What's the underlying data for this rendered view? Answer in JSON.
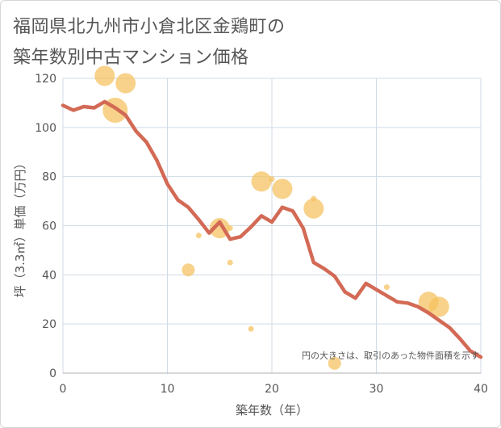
{
  "title_line1": "福岡県北九州市小倉北区金鶏町の",
  "title_line2": "築年数別中古マンション価格",
  "chart_data": {
    "type": "scatter",
    "xlabel": "築年数（年）",
    "ylabel": "坪（3.3㎡）単価（万円）",
    "xlim": [
      0,
      40
    ],
    "ylim": [
      0,
      120
    ],
    "xticks": [
      0,
      10,
      20,
      30,
      40
    ],
    "yticks": [
      0,
      20,
      40,
      60,
      80,
      100,
      120
    ],
    "grid": true,
    "annotation": "円の大きさは、取引のあった物件面積を示す",
    "colors": {
      "bubble": "#f5c15d",
      "line": "#d36a55",
      "grid": "#d0dbe6",
      "text": "#555555"
    },
    "bubbles": [
      {
        "x": 4,
        "y": 121,
        "size": 3
      },
      {
        "x": 6,
        "y": 118,
        "size": 3
      },
      {
        "x": 5,
        "y": 107,
        "size": 4
      },
      {
        "x": 12,
        "y": 42,
        "size": 2
      },
      {
        "x": 13,
        "y": 56,
        "size": 1
      },
      {
        "x": 15,
        "y": 59,
        "size": 3
      },
      {
        "x": 16,
        "y": 59,
        "size": 1
      },
      {
        "x": 16,
        "y": 45,
        "size": 1
      },
      {
        "x": 18,
        "y": 18,
        "size": 1
      },
      {
        "x": 19,
        "y": 78,
        "size": 3
      },
      {
        "x": 20,
        "y": 79,
        "size": 1
      },
      {
        "x": 21,
        "y": 75,
        "size": 3
      },
      {
        "x": 24,
        "y": 71,
        "size": 1
      },
      {
        "x": 24,
        "y": 67,
        "size": 3
      },
      {
        "x": 26,
        "y": 4,
        "size": 2
      },
      {
        "x": 31,
        "y": 35,
        "size": 1
      },
      {
        "x": 35,
        "y": 29,
        "size": 3
      },
      {
        "x": 36,
        "y": 27,
        "size": 3
      }
    ],
    "line": [
      {
        "x": 0,
        "y": 109
      },
      {
        "x": 1,
        "y": 107
      },
      {
        "x": 2,
        "y": 108.5
      },
      {
        "x": 3,
        "y": 108
      },
      {
        "x": 4,
        "y": 110.5
      },
      {
        "x": 5,
        "y": 108
      },
      {
        "x": 6,
        "y": 105
      },
      {
        "x": 7,
        "y": 98.5
      },
      {
        "x": 8,
        "y": 94
      },
      {
        "x": 9,
        "y": 86.5
      },
      {
        "x": 10,
        "y": 77
      },
      {
        "x": 11,
        "y": 70.5
      },
      {
        "x": 12,
        "y": 67.5
      },
      {
        "x": 13,
        "y": 62.5
      },
      {
        "x": 14,
        "y": 57
      },
      {
        "x": 15,
        "y": 61.5
      },
      {
        "x": 16,
        "y": 54.5
      },
      {
        "x": 17,
        "y": 55.5
      },
      {
        "x": 18,
        "y": 59.5
      },
      {
        "x": 19,
        "y": 64
      },
      {
        "x": 20,
        "y": 61.5
      },
      {
        "x": 21,
        "y": 67.5
      },
      {
        "x": 22,
        "y": 66
      },
      {
        "x": 23,
        "y": 59
      },
      {
        "x": 24,
        "y": 45
      },
      {
        "x": 25,
        "y": 42.5
      },
      {
        "x": 26,
        "y": 39.5
      },
      {
        "x": 27,
        "y": 33
      },
      {
        "x": 28,
        "y": 30.5
      },
      {
        "x": 29,
        "y": 36.5
      },
      {
        "x": 30,
        "y": 34
      },
      {
        "x": 31,
        "y": 31.5
      },
      {
        "x": 32,
        "y": 29
      },
      {
        "x": 33,
        "y": 28.5
      },
      {
        "x": 34,
        "y": 27
      },
      {
        "x": 35,
        "y": 24.5
      },
      {
        "x": 36,
        "y": 21.5
      },
      {
        "x": 37,
        "y": 18.5
      },
      {
        "x": 38,
        "y": 14
      },
      {
        "x": 39,
        "y": 9
      },
      {
        "x": 40,
        "y": 6.5
      }
    ]
  }
}
